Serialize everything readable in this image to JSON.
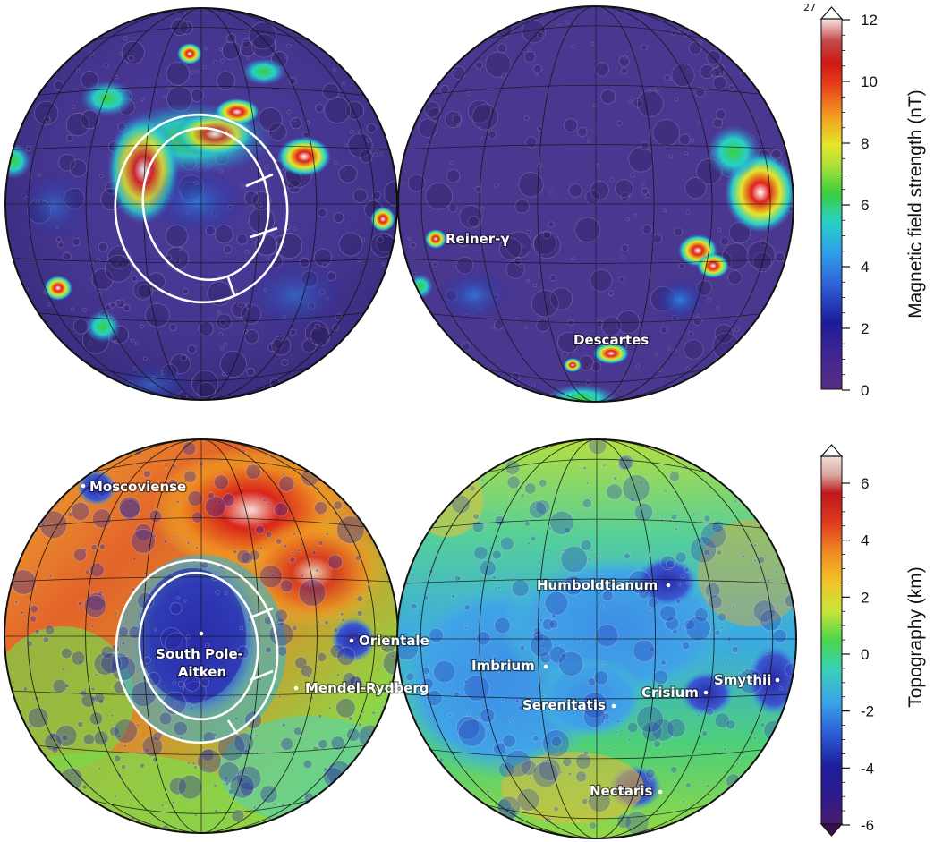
{
  "panels": {
    "magnetic": {
      "colorbar": {
        "title": "Magnetic field strength (nT)",
        "ticks": [
          "0",
          "2",
          "4",
          "6",
          "8",
          "10",
          "12"
        ],
        "max_note": "27"
      },
      "labels": {
        "reiner_gamma": "Reiner-γ",
        "descartes": "Descartes"
      }
    },
    "topography": {
      "colorbar": {
        "title": "Topography (km)",
        "ticks": [
          "-6",
          "-4",
          "-2",
          "0",
          "2",
          "4",
          "6"
        ]
      },
      "labels": {
        "moscoviense": "Moscoviense",
        "spa_line1": "South Pole-",
        "spa_line2": "Aitken",
        "orientale": "Orientale",
        "mendel_rydberg": "Mendel-Rydberg",
        "humboldtianum": "Humboldtianum",
        "imbrium": "Imbrium",
        "serenitatis": "Serenitatis",
        "crisium": "Crisium",
        "smythii": "Smythii",
        "nectaris": "Nectaris"
      }
    }
  },
  "colors": {
    "magnetic_scale": [
      "#5a2d82",
      "#1c1c9a",
      "#2f7fe0",
      "#27d0c8",
      "#3ccf3c",
      "#e6e52a",
      "#f39a1f",
      "#e02018",
      "#b01414",
      "#f5d8d0",
      "#ffffff"
    ],
    "topo_scale": [
      "#3b1c6e",
      "#1b1f9c",
      "#2e5fd8",
      "#3aa3e8",
      "#39d0b8",
      "#49d64a",
      "#c9e53a",
      "#f0c326",
      "#ee8a22",
      "#dd3a1f",
      "#c0181a",
      "#f4ddd6"
    ]
  }
}
